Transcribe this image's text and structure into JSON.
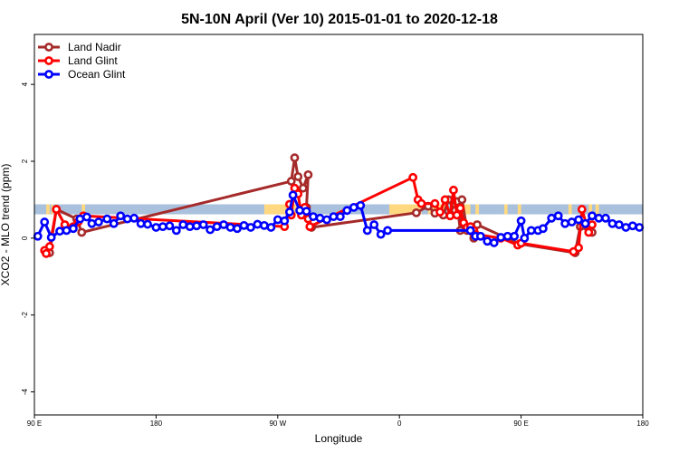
{
  "chart_data": {
    "type": "line",
    "title": "5N-10N April (Ver 10)   2015-01-01 to 2020-12-18",
    "xlabel": "Longitude",
    "ylabel": "XCO2 - MLO trend (ppm)",
    "xlim": [
      90,
      450
    ],
    "ylim": [
      -4.6,
      5.3
    ],
    "x_ticks": [
      {
        "value": 90,
        "label": "90 E"
      },
      {
        "value": 162,
        "label": "180"
      },
      {
        "value": 234,
        "label": "90 W"
      },
      {
        "value": 306,
        "label": "0"
      },
      {
        "value": 378,
        "label": "90 E"
      },
      {
        "value": 450,
        "label": "180"
      }
    ],
    "y_ticks": [
      -4,
      -2,
      0,
      2,
      4
    ],
    "legend": {
      "position": "top-left",
      "entries": [
        {
          "label": "Land Nadir",
          "color": "#a52a2a"
        },
        {
          "label": "Land Glint",
          "color": "#ff0000"
        },
        {
          "label": "Ocean Glint",
          "color": "#0000ff"
        }
      ]
    },
    "band": {
      "y_range": [
        0.62,
        0.88
      ],
      "color": "#a9c1dd",
      "land_color": "#ffd880"
    },
    "land_band_segments": [
      [
        97,
        99
      ],
      [
        100,
        101
      ],
      [
        118,
        120
      ],
      [
        226,
        250
      ],
      [
        300,
        319
      ],
      [
        323,
        333
      ],
      [
        338,
        348
      ],
      [
        351,
        353
      ],
      [
        368,
        370
      ],
      [
        376,
        378
      ],
      [
        406,
        408
      ],
      [
        418,
        420
      ],
      [
        422,
        424
      ]
    ],
    "series": [
      {
        "name": "Land Nadir",
        "color": "#a52a2a",
        "x": [
          97,
          99,
          103,
          115,
          118,
          242,
          244,
          246,
          249,
          252,
          251,
          254,
          316,
          323,
          327,
          332,
          335,
          339,
          340,
          342,
          343,
          346,
          350,
          352,
          377,
          410,
          413,
          420
        ],
        "y": [
          -0.38,
          -0.38,
          0.75,
          0.5,
          0.15,
          1.48,
          2.09,
          1.6,
          1.3,
          1.65,
          0.8,
          0.28,
          0.66,
          0.83,
          0.65,
          0.6,
          1.0,
          0.72,
          0.95,
          0.2,
          1.0,
          0.2,
          0.0,
          0.35,
          -0.15,
          -0.38,
          0.3,
          0.15
        ]
      },
      {
        "name": "Land Glint",
        "color": "#ff0000",
        "x": [
          96,
          97,
          99,
          103,
          108,
          113,
          116,
          119,
          238,
          241,
          242,
          244,
          246,
          248,
          250,
          252,
          253,
          314,
          317,
          319,
          327,
          330,
          333,
          336,
          338,
          340,
          342,
          344,
          346,
          348,
          350,
          351,
          366,
          376,
          378,
          409,
          412,
          414,
          418,
          420
        ],
        "y": [
          -0.32,
          -0.4,
          -0.22,
          0.75,
          0.35,
          0.3,
          0.43,
          0.58,
          0.3,
          0.88,
          0.6,
          1.3,
          1.15,
          0.6,
          0.8,
          0.5,
          0.3,
          1.58,
          1.0,
          0.9,
          0.9,
          0.68,
          1.0,
          0.58,
          1.25,
          0.6,
          0.78,
          0.4,
          0.28,
          0.3,
          0.2,
          0.1,
          0.0,
          -0.18,
          -0.13,
          -0.35,
          -0.25,
          0.75,
          0.15,
          0.35
        ]
      },
      {
        "name": "Ocean Glint",
        "color": "#0000ff",
        "x": [
          92,
          96,
          100,
          105,
          109,
          113,
          117,
          121,
          124,
          128,
          133,
          137,
          141,
          145,
          149,
          153,
          157,
          162,
          166,
          170,
          174,
          178,
          182,
          186,
          190,
          194,
          198,
          202,
          206,
          210,
          214,
          218,
          222,
          226,
          230,
          234,
          238,
          241,
          243,
          247,
          251,
          255,
          259,
          263,
          267,
          271,
          275,
          279,
          283,
          287,
          291,
          295,
          299,
          348,
          351,
          354,
          358,
          362,
          366,
          370,
          374,
          378,
          380,
          384,
          388,
          391,
          396,
          400,
          404,
          408,
          412,
          416,
          420,
          424,
          428,
          432,
          436,
          440,
          444,
          448
        ],
        "y": [
          0.05,
          0.42,
          0.02,
          0.18,
          0.2,
          0.25,
          0.5,
          0.55,
          0.38,
          0.42,
          0.5,
          0.38,
          0.58,
          0.5,
          0.52,
          0.38,
          0.36,
          0.28,
          0.3,
          0.32,
          0.2,
          0.35,
          0.3,
          0.32,
          0.35,
          0.22,
          0.3,
          0.35,
          0.28,
          0.25,
          0.33,
          0.28,
          0.36,
          0.33,
          0.28,
          0.48,
          0.45,
          0.68,
          1.12,
          0.72,
          0.7,
          0.56,
          0.52,
          0.48,
          0.56,
          0.56,
          0.72,
          0.8,
          0.85,
          0.2,
          0.35,
          0.1,
          0.2,
          0.2,
          0.05,
          0.05,
          -0.08,
          -0.12,
          0.02,
          0.05,
          0.05,
          0.45,
          0.0,
          0.2,
          0.2,
          0.25,
          0.52,
          0.58,
          0.38,
          0.42,
          0.48,
          0.38,
          0.58,
          0.52,
          0.52,
          0.38,
          0.35,
          0.28,
          0.32,
          0.28
        ]
      }
    ]
  }
}
